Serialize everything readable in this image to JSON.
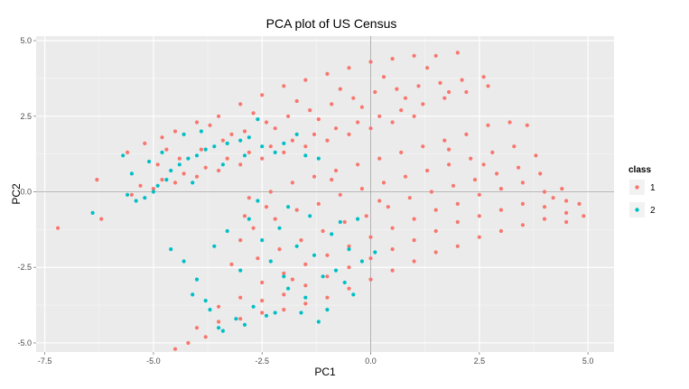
{
  "chart_data": {
    "type": "scatter",
    "title": "PCA plot of US Census",
    "xlabel": "PC1",
    "ylabel": "PC2",
    "xlim": [
      -7.7,
      5.6
    ],
    "ylim": [
      -5.3,
      5.15
    ],
    "x_ticks": [
      -7.5,
      -5.0,
      -2.5,
      0.0,
      2.5,
      5.0
    ],
    "y_ticks": [
      -5.0,
      -2.5,
      0.0,
      2.5,
      5.0
    ],
    "x_tick_labels": [
      "-7.5",
      "-5.0",
      "-2.5",
      "0.0",
      "2.5",
      "5.0"
    ],
    "y_tick_labels": [
      "-5.0",
      "-2.5",
      "0.0",
      "2.5",
      "5.0"
    ],
    "grid": true,
    "reference_lines": {
      "x": 0,
      "y": 0
    },
    "legend": {
      "title": "class",
      "position": "right",
      "entries": [
        {
          "label": "1",
          "color": "#F8766D"
        },
        {
          "label": "2",
          "color": "#00BFC4"
        }
      ]
    },
    "series": [
      {
        "name": "1",
        "color": "#F8766D",
        "points": [
          [
            -5.6,
            1.3
          ],
          [
            -5.2,
            1.6
          ],
          [
            -4.8,
            1.8
          ],
          [
            -4.5,
            2.0
          ],
          [
            -4.0,
            2.3
          ],
          [
            -3.5,
            2.5
          ],
          [
            -3.0,
            2.9
          ],
          [
            -2.5,
            3.2
          ],
          [
            -2.0,
            3.5
          ],
          [
            -1.5,
            3.7
          ],
          [
            -1.0,
            3.9
          ],
          [
            -0.5,
            4.1
          ],
          [
            0.0,
            4.3
          ],
          [
            0.5,
            4.4
          ],
          [
            1.0,
            4.5
          ],
          [
            1.5,
            4.5
          ],
          [
            2.0,
            4.6
          ],
          [
            -4.9,
            0.9
          ],
          [
            -4.4,
            1.1
          ],
          [
            -3.9,
            1.4
          ],
          [
            -3.4,
            1.7
          ],
          [
            -2.9,
            2.0
          ],
          [
            -2.4,
            2.3
          ],
          [
            -1.9,
            2.5
          ],
          [
            -1.4,
            2.7
          ],
          [
            -0.9,
            2.9
          ],
          [
            -0.4,
            3.1
          ],
          [
            0.1,
            3.3
          ],
          [
            0.6,
            3.4
          ],
          [
            1.1,
            3.5
          ],
          [
            1.6,
            3.6
          ],
          [
            2.1,
            3.7
          ],
          [
            2.6,
            3.8
          ],
          [
            -5.3,
            0.2
          ],
          [
            -4.8,
            0.4
          ],
          [
            -4.3,
            0.6
          ],
          [
            -3.8,
            0.8
          ],
          [
            -3.3,
            1.1
          ],
          [
            -2.8,
            1.3
          ],
          [
            -2.3,
            1.5
          ],
          [
            -1.8,
            1.7
          ],
          [
            -1.3,
            1.9
          ],
          [
            -0.8,
            2.1
          ],
          [
            -0.3,
            2.3
          ],
          [
            0.2,
            2.5
          ],
          [
            0.7,
            2.7
          ],
          [
            1.2,
            2.9
          ],
          [
            1.7,
            3.1
          ],
          [
            2.2,
            3.3
          ],
          [
            2.7,
            3.5
          ],
          [
            -5.5,
            -0.1
          ],
          [
            -5.0,
            0.1
          ],
          [
            -4.5,
            0.3
          ],
          [
            -4.0,
            0.5
          ],
          [
            -3.5,
            0.7
          ],
          [
            -3.0,
            0.9
          ],
          [
            -2.5,
            1.1
          ],
          [
            -2.0,
            1.3
          ],
          [
            -1.5,
            1.5
          ],
          [
            -1.0,
            1.7
          ],
          [
            -0.5,
            1.9
          ],
          [
            0.0,
            2.1
          ],
          [
            0.5,
            2.3
          ],
          [
            1.0,
            2.5
          ],
          [
            -3.7,
            2.2
          ],
          [
            -2.7,
            2.6
          ],
          [
            -1.7,
            3.0
          ],
          [
            -0.7,
            3.4
          ],
          [
            0.3,
            3.8
          ],
          [
            1.3,
            4.1
          ],
          [
            -6.3,
            0.4
          ],
          [
            -6.2,
            -0.9
          ],
          [
            -7.2,
            -1.2
          ],
          [
            -4.7,
            1.4
          ],
          [
            -3.2,
            1.9
          ],
          [
            -2.2,
            2.1
          ],
          [
            -1.2,
            2.4
          ],
          [
            -0.2,
            2.8
          ],
          [
            0.8,
            3.1
          ],
          [
            1.8,
            3.3
          ],
          [
            -2.8,
            -0.2
          ],
          [
            -2.3,
            0.0
          ],
          [
            -1.8,
            0.3
          ],
          [
            -1.3,
            0.5
          ],
          [
            -0.8,
            0.7
          ],
          [
            -0.3,
            0.9
          ],
          [
            0.2,
            1.1
          ],
          [
            0.7,
            1.3
          ],
          [
            1.2,
            1.5
          ],
          [
            1.7,
            1.7
          ],
          [
            2.2,
            1.9
          ],
          [
            2.7,
            2.2
          ],
          [
            3.2,
            2.3
          ],
          [
            -2.7,
            -1.2
          ],
          [
            -2.2,
            -0.9
          ],
          [
            -1.7,
            -0.6
          ],
          [
            -1.2,
            -0.4
          ],
          [
            -0.7,
            -0.1
          ],
          [
            -0.2,
            0.1
          ],
          [
            0.3,
            0.3
          ],
          [
            0.8,
            0.5
          ],
          [
            1.3,
            0.7
          ],
          [
            1.8,
            0.9
          ],
          [
            2.3,
            1.1
          ],
          [
            2.8,
            1.3
          ],
          [
            3.3,
            1.5
          ],
          [
            3.8,
            1.2
          ],
          [
            -2.6,
            -2.2
          ],
          [
            -2.1,
            -1.9
          ],
          [
            -1.6,
            -1.6
          ],
          [
            -1.1,
            -1.3
          ],
          [
            -0.6,
            -1.0
          ],
          [
            -0.1,
            -0.8
          ],
          [
            0.4,
            -0.5
          ],
          [
            0.9,
            -0.2
          ],
          [
            1.4,
            0.0
          ],
          [
            1.9,
            0.2
          ],
          [
            2.4,
            0.4
          ],
          [
            2.9,
            0.6
          ],
          [
            3.4,
            0.8
          ],
          [
            3.9,
            0.6
          ],
          [
            4.4,
            0.1
          ],
          [
            -2.5,
            -3.0
          ],
          [
            -2.0,
            -2.7
          ],
          [
            -1.5,
            -2.4
          ],
          [
            -1.0,
            -2.1
          ],
          [
            -0.5,
            -1.8
          ],
          [
            0.0,
            -1.5
          ],
          [
            0.5,
            -1.2
          ],
          [
            1.0,
            -0.9
          ],
          [
            1.5,
            -0.6
          ],
          [
            2.0,
            -0.4
          ],
          [
            2.5,
            -0.1
          ],
          [
            3.0,
            0.1
          ],
          [
            3.5,
            0.3
          ],
          [
            4.0,
            0.0
          ],
          [
            4.5,
            -0.3
          ],
          [
            4.9,
            -0.8
          ],
          [
            -3.5,
            -3.8
          ],
          [
            -3.0,
            -3.5
          ],
          [
            -2.5,
            -3.6
          ],
          [
            -2.0,
            -3.4
          ],
          [
            -1.5,
            -3.1
          ],
          [
            -1.0,
            -2.8
          ],
          [
            -0.5,
            -2.5
          ],
          [
            0.0,
            -2.2
          ],
          [
            0.5,
            -1.9
          ],
          [
            1.0,
            -1.6
          ],
          [
            1.5,
            -1.3
          ],
          [
            2.0,
            -1.0
          ],
          [
            2.5,
            -0.8
          ],
          [
            3.0,
            -0.6
          ],
          [
            3.5,
            -0.4
          ],
          [
            4.0,
            -0.5
          ],
          [
            4.5,
            -0.7
          ],
          [
            -4.0,
            -4.5
          ],
          [
            -3.5,
            -4.3
          ],
          [
            -3.0,
            -4.2
          ],
          [
            -2.5,
            -4.0
          ],
          [
            -2.0,
            -3.9
          ],
          [
            -1.5,
            -3.7
          ],
          [
            -1.0,
            -3.5
          ],
          [
            -0.5,
            -3.2
          ],
          [
            0.0,
            -2.9
          ],
          [
            0.5,
            -2.6
          ],
          [
            1.0,
            -2.3
          ],
          [
            1.5,
            -2.0
          ],
          [
            2.0,
            -1.8
          ],
          [
            2.5,
            -1.5
          ],
          [
            3.0,
            -1.3
          ],
          [
            3.5,
            -1.1
          ],
          [
            4.0,
            -0.9
          ],
          [
            4.5,
            -1.0
          ],
          [
            -4.2,
            -5.0
          ],
          [
            -4.5,
            -5.2
          ],
          [
            -3.8,
            -4.8
          ],
          [
            -2.9,
            -0.8
          ],
          [
            -3.2,
            -2.4
          ],
          [
            -3.0,
            -1.6
          ],
          [
            -2.4,
            -0.5
          ],
          [
            3.6,
            2.2
          ],
          [
            4.2,
            -0.2
          ],
          [
            4.8,
            -0.4
          ],
          [
            -1.8,
            -2.9
          ],
          [
            0.2,
            -0.3
          ],
          [
            1.8,
            1.4
          ],
          [
            2.6,
            0.9
          ],
          [
            -0.9,
            0.4
          ]
        ]
      },
      {
        "name": "2",
        "color": "#00BFC4",
        "points": [
          [
            -5.4,
            -0.3
          ],
          [
            -5.2,
            -0.2
          ],
          [
            -5.0,
            0.0
          ],
          [
            -4.9,
            0.2
          ],
          [
            -4.7,
            0.4
          ],
          [
            -4.6,
            0.7
          ],
          [
            -4.4,
            0.9
          ],
          [
            -4.2,
            1.1
          ],
          [
            -4.0,
            1.2
          ],
          [
            -3.8,
            1.4
          ],
          [
            -3.6,
            1.5
          ],
          [
            -3.3,
            1.6
          ],
          [
            -3.0,
            1.7
          ],
          [
            -2.8,
            1.8
          ],
          [
            -2.5,
            1.5
          ],
          [
            -2.2,
            1.3
          ],
          [
            -2.0,
            1.6
          ],
          [
            -1.7,
            1.9
          ],
          [
            -1.5,
            1.2
          ],
          [
            -1.2,
            1.1
          ],
          [
            -3.9,
            2.0
          ],
          [
            -4.3,
            1.9
          ],
          [
            -4.8,
            1.3
          ],
          [
            -5.1,
            1.0
          ],
          [
            -5.5,
            0.6
          ],
          [
            -5.6,
            -0.1
          ],
          [
            -3.4,
            0.9
          ],
          [
            -2.9,
            1.2
          ],
          [
            -4.1,
            0.3
          ],
          [
            -5.7,
            1.2
          ],
          [
            -6.4,
            -0.7
          ],
          [
            -2.6,
            2.4
          ],
          [
            -2.0,
            -2.8
          ],
          [
            -1.9,
            -3.2
          ],
          [
            -1.7,
            -1.8
          ],
          [
            -1.5,
            -3.5
          ],
          [
            -1.3,
            -2.1
          ],
          [
            -1.1,
            -2.8
          ],
          [
            -0.9,
            -1.4
          ],
          [
            -0.8,
            -2.6
          ],
          [
            -0.6,
            -3.0
          ],
          [
            -0.5,
            -1.9
          ],
          [
            -0.4,
            -3.4
          ],
          [
            -0.2,
            -2.3
          ],
          [
            -2.3,
            -2.3
          ],
          [
            -2.5,
            -1.6
          ],
          [
            -2.7,
            -3.8
          ],
          [
            -2.8,
            -0.9
          ],
          [
            -3.0,
            -2.6
          ],
          [
            -3.1,
            -4.2
          ],
          [
            -3.3,
            -1.3
          ],
          [
            -3.5,
            -4.5
          ],
          [
            -3.8,
            -3.6
          ],
          [
            -4.0,
            -2.9
          ],
          [
            -4.3,
            -2.3
          ],
          [
            -3.6,
            -1.8
          ],
          [
            -2.2,
            -4.0
          ],
          [
            -1.6,
            -4.0
          ],
          [
            -1.0,
            -3.9
          ],
          [
            -0.7,
            -1.0
          ],
          [
            -1.9,
            -0.5
          ],
          [
            -2.6,
            -0.3
          ],
          [
            -4.1,
            -3.4
          ],
          [
            -3.4,
            -4.6
          ],
          [
            -2.9,
            -4.4
          ],
          [
            -2.4,
            -4.1
          ],
          [
            -1.4,
            -0.8
          ],
          [
            -0.3,
            -0.9
          ],
          [
            0.1,
            -2.0
          ],
          [
            -1.2,
            -4.3
          ],
          [
            -2.1,
            -1.2
          ],
          [
            -3.7,
            -3.9
          ],
          [
            -4.6,
            -1.9
          ]
        ]
      }
    ]
  }
}
